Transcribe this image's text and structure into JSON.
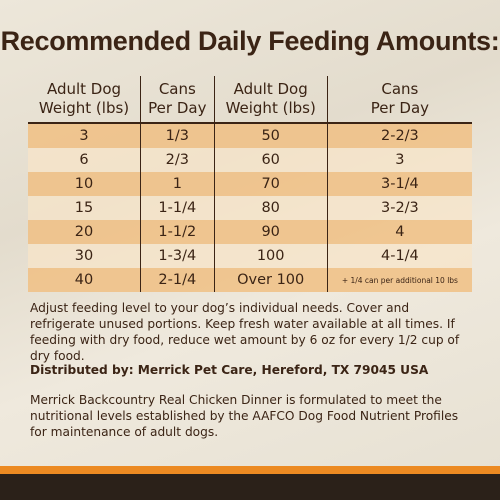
{
  "title": "Recommended Daily Feeding Amounts:",
  "table": {
    "headers": [
      "Adult Dog\nWeight (lbs)",
      "Cans\nPer Day",
      "Adult Dog\nWeight (lbs)",
      "Cans\nPer Day"
    ],
    "rows": [
      [
        "3",
        "1/3",
        "50",
        "2-2/3"
      ],
      [
        "6",
        "2/3",
        "60",
        "3"
      ],
      [
        "10",
        "1",
        "70",
        "3-1/4"
      ],
      [
        "15",
        "1-1/4",
        "80",
        "3-2/3"
      ],
      [
        "20",
        "1-1/2",
        "90",
        "4"
      ],
      [
        "30",
        "1-3/4",
        "100",
        "4-1/4"
      ],
      [
        "40",
        "2-1/4",
        "Over 100",
        "+ 1/4 can per additional 10 lbs"
      ]
    ]
  },
  "notes": {
    "instructions": "Adjust feeding level to your dog’s individual needs. Cover and refrigerate unused portions. Keep fresh water available at all times. If feeding with dry food, reduce wet amount by 6 oz for every 1/2 cup of dry food.",
    "distributor": "Distributed by: Merrick Pet Care, Hereford, TX 79045 USA",
    "statement": "Merrick Backcountry Real Chicken Dinner is formulated to meet the nutritional levels established by the AAFCO Dog Food Nutrient Profiles for maintenance of adult dogs."
  }
}
